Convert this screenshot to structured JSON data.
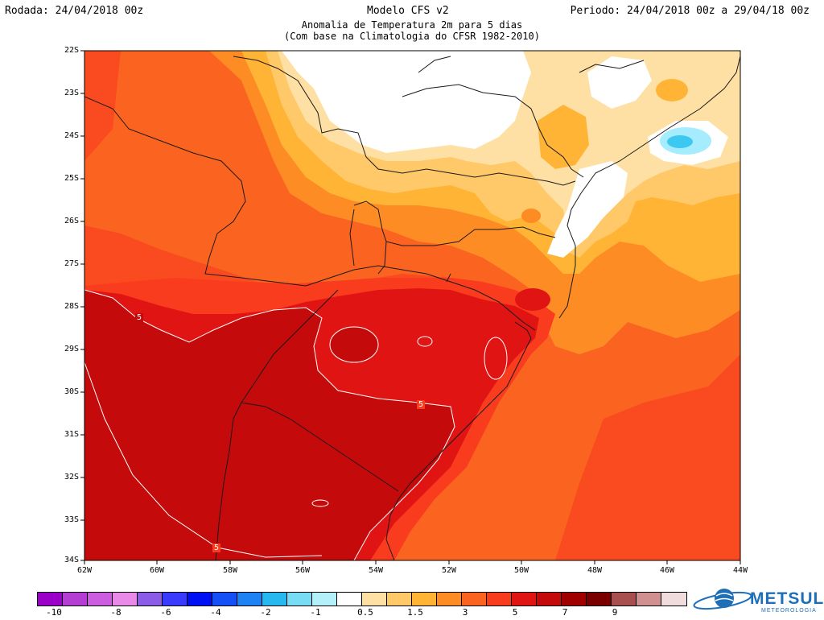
{
  "header": {
    "run": "Rodada: 24/04/2018 00z",
    "model": "Modelo CFS v2",
    "period": "Periodo: 24/04/2018 00z a 29/04/18 00z",
    "title_line1": "Anomalia de Temperatura 2m para 5 dias",
    "title_line2": "(Com base na Climatologia do CFSR 1982-2010)"
  },
  "map": {
    "latitude_labels": [
      "22S",
      "23S",
      "24S",
      "25S",
      "26S",
      "27S",
      "28S",
      "29S",
      "30S",
      "31S",
      "32S",
      "33S",
      "34S"
    ],
    "longitude_labels": [
      "62W",
      "60W",
      "58W",
      "56W",
      "54W",
      "52W",
      "50W",
      "48W",
      "46W",
      "44W"
    ],
    "contour_labels": [
      "5",
      "5",
      "5"
    ],
    "colors": {
      "bg_max": "#fa4a1f",
      "c9": "#c40a0a",
      "c7": "#e11414",
      "c5": "#fa3c1e",
      "c4": "#fb6420",
      "c3": "#fd8c24",
      "c2": "#ffb436",
      "c1_5": "#ffc96a",
      "c1": "#ffe0a4",
      "c0_5": "#ffffff",
      "c_neg1": "#a6ecff",
      "c_neg2": "#3cc8f0"
    }
  },
  "colorbar": {
    "labels": [
      "-10",
      "-8",
      "-6",
      "-4",
      "-2",
      "-1",
      "0.5",
      "1.5",
      "3",
      "5",
      "7",
      "9"
    ],
    "colors": [
      "#9b00c9",
      "#b43dd4",
      "#cc5de0",
      "#e98ae8",
      "#8b5ce8",
      "#3a3afc",
      "#0010f5",
      "#1450f5",
      "#1e82f5",
      "#28b8f0",
      "#78dcf5",
      "#b4f0fa",
      "#ffffff",
      "#ffe0a4",
      "#ffc96a",
      "#ffb436",
      "#fd8c24",
      "#fb6420",
      "#fa3c1e",
      "#e11414",
      "#c40a0a",
      "#a00000",
      "#7a0000",
      "#a85050",
      "#d09090",
      "#f0dcdc"
    ]
  },
  "logo": {
    "name": "METSUL",
    "tagline": "METEOROLOGIA",
    "icon": "globe-icon"
  }
}
